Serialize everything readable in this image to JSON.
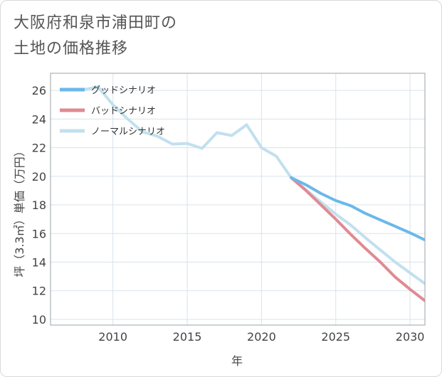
{
  "title_line1": "大阪府和泉市浦田町の",
  "title_line2": "土地の価格推移",
  "chart_data": {
    "type": "line",
    "xlabel": "年",
    "ylabel": "坪（3.3㎡）単価（万円）",
    "xlim": [
      2005.8,
      2031
    ],
    "ylim": [
      9.6,
      27.2
    ],
    "xticks": [
      2010,
      2015,
      2020,
      2025,
      2030
    ],
    "yticks": [
      10,
      12,
      14,
      16,
      18,
      20,
      22,
      24,
      26
    ],
    "grid": true,
    "legend_position": "top-left",
    "series": [
      {
        "name": "グッドシナリオ",
        "color": "#6bb8ea",
        "x": [
          2022,
          2023,
          2024,
          2025,
          2026,
          2027,
          2028,
          2029,
          2030,
          2031
        ],
        "y": [
          19.9,
          19.4,
          18.8,
          18.3,
          17.95,
          17.4,
          16.95,
          16.5,
          16.05,
          15.55
        ]
      },
      {
        "name": "バッドシナリオ",
        "color": "#e08a92",
        "x": [
          2022,
          2023,
          2024,
          2025,
          2026,
          2027,
          2028,
          2029,
          2030,
          2031
        ],
        "y": [
          19.9,
          19.0,
          18.0,
          17.0,
          15.95,
          14.95,
          14.0,
          12.95,
          12.1,
          11.3
        ]
      },
      {
        "name": "ノーマルシナリオ",
        "color": "#c2e0ee",
        "x": [
          2008,
          2009,
          2010,
          2011,
          2012,
          2013,
          2014,
          2015,
          2016,
          2017,
          2018,
          2019,
          2020,
          2021,
          2022,
          2023,
          2024,
          2025,
          2026,
          2027,
          2028,
          2029,
          2030,
          2031
        ],
        "y": [
          26.05,
          26.25,
          25.0,
          24.0,
          23.1,
          22.8,
          22.25,
          22.3,
          21.95,
          23.05,
          22.85,
          23.6,
          22.0,
          21.4,
          19.9,
          19.05,
          18.2,
          17.35,
          16.6,
          15.7,
          14.85,
          14.0,
          13.25,
          12.5
        ]
      }
    ]
  }
}
